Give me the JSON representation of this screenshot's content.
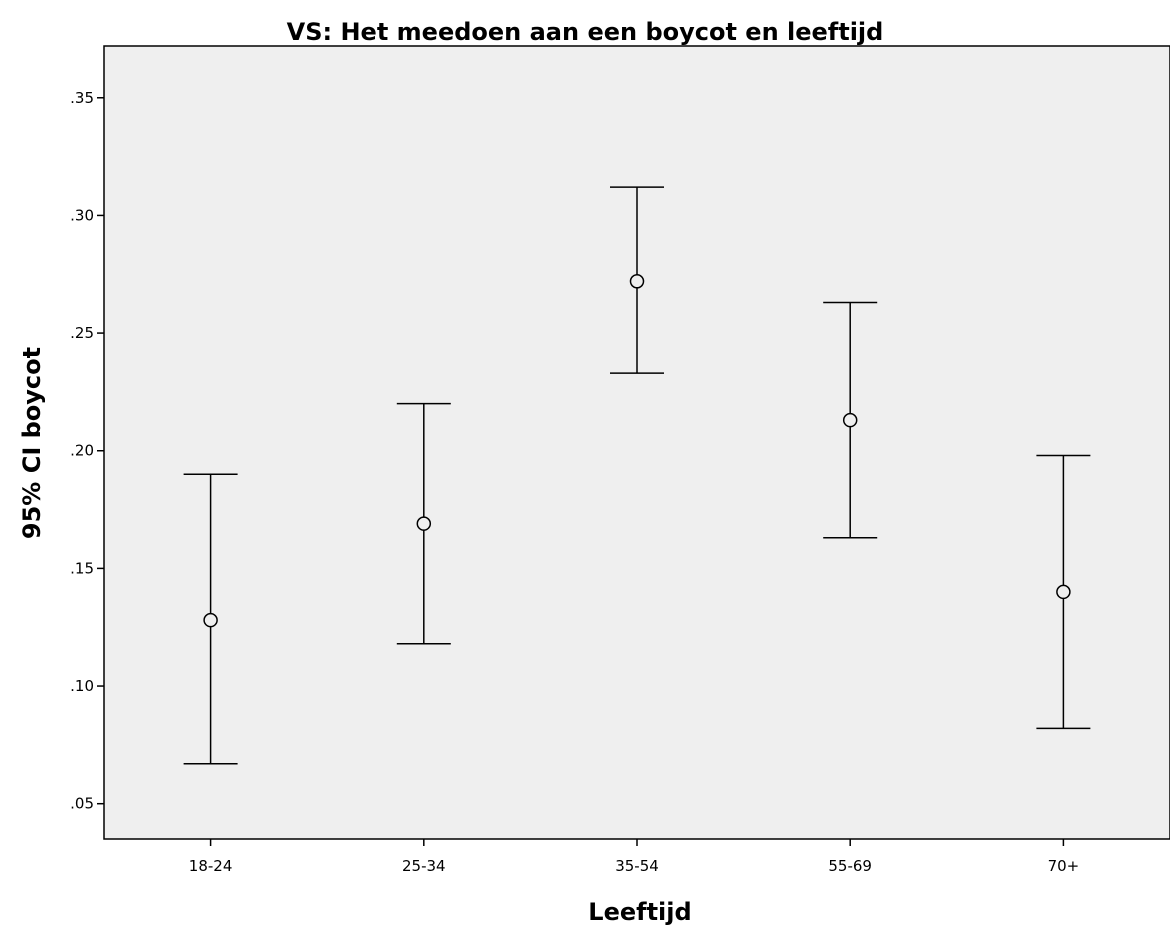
{
  "chart_data": {
    "type": "errorbar",
    "title": "VS: Het meedoen aan een boycot en leeftijd",
    "xlabel": "Leeftijd",
    "ylabel": "95% CI boycot",
    "categories": [
      "18-24",
      "25-34",
      "35-54",
      "55-69",
      "70+"
    ],
    "means": [
      0.128,
      0.169,
      0.272,
      0.213,
      0.14
    ],
    "lower": [
      0.067,
      0.118,
      0.233,
      0.163,
      0.082
    ],
    "upper": [
      0.19,
      0.22,
      0.312,
      0.263,
      0.198
    ],
    "ylim": [
      0.035,
      0.372
    ],
    "yticks": [
      0.05,
      0.1,
      0.15,
      0.2,
      0.25,
      0.3,
      0.35
    ],
    "ytick_labels": [
      ".05",
      ".10",
      ".15",
      ".20",
      ".25",
      ".30",
      ".35"
    ],
    "grid": false,
    "colors": {
      "plot_background": "#efefef",
      "mark": "#000000"
    }
  }
}
